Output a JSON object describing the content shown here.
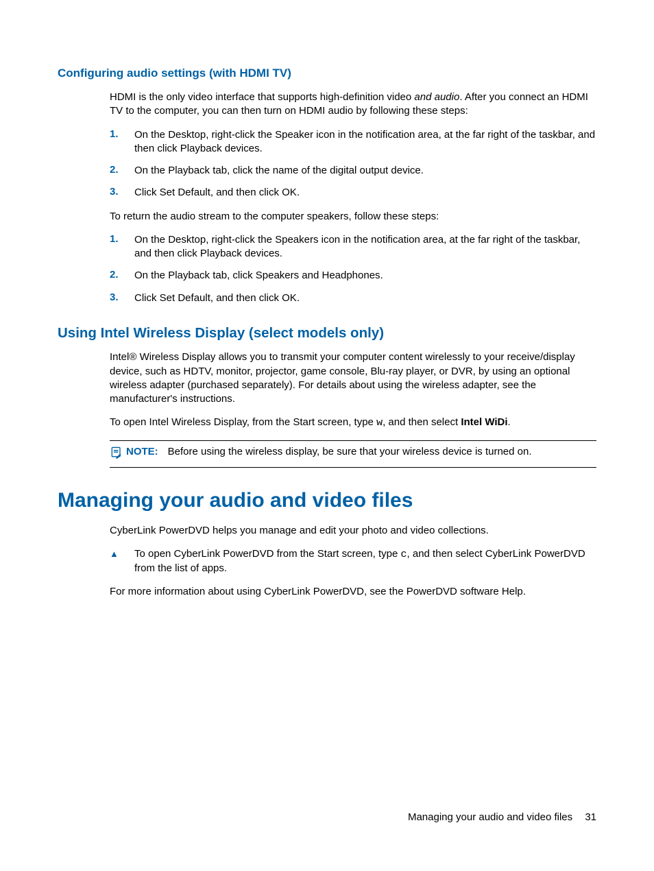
{
  "colors": {
    "accent": "#0061a5",
    "text": "#000000",
    "background": "#ffffff",
    "rule": "#000000"
  },
  "typography": {
    "body_family": "Arial, Helvetica, sans-serif",
    "body_size_pt": 11,
    "h1_size_pt": 22,
    "h2_size_pt": 15,
    "h3_size_pt": 13,
    "mono_family": "Courier New"
  },
  "section1": {
    "heading": "Configuring audio settings (with HDMI TV)",
    "intro_parts": [
      {
        "t": "HDMI is the only video interface that supports high-definition video "
      },
      {
        "t": "and audio",
        "i": true
      },
      {
        "t": ". After you connect an HDMI TV to the computer, you can then turn on HDMI audio by following these steps:"
      }
    ],
    "steps_a": [
      [
        {
          "t": "On the Desktop, right-click the "
        },
        {
          "t": "Speaker",
          "b": true
        },
        {
          "t": " icon in the notification area, at the far right of the taskbar, and then click "
        },
        {
          "t": "Playback devices",
          "b": true
        },
        {
          "t": "."
        }
      ],
      [
        {
          "t": "On the Playback tab, click the name of the digital output device."
        }
      ],
      [
        {
          "t": "Click "
        },
        {
          "t": "Set Default",
          "b": true
        },
        {
          "t": ", and then click "
        },
        {
          "t": "OK",
          "b": true
        },
        {
          "t": "."
        }
      ]
    ],
    "mid_para": "To return the audio stream to the computer speakers, follow these steps:",
    "steps_b": [
      [
        {
          "t": "On the Desktop, right-click the "
        },
        {
          "t": "Speakers",
          "b": true
        },
        {
          "t": " icon in the notification area, at the far right of the taskbar, and then click "
        },
        {
          "t": "Playback devices",
          "b": true
        },
        {
          "t": "."
        }
      ],
      [
        {
          "t": "On the Playback tab, click "
        },
        {
          "t": "Speakers and Headphones",
          "b": true
        },
        {
          "t": "."
        }
      ],
      [
        {
          "t": "Click "
        },
        {
          "t": "Set Default",
          "b": true
        },
        {
          "t": ", and then click "
        },
        {
          "t": "OK",
          "b": true
        },
        {
          "t": "."
        }
      ]
    ]
  },
  "section2": {
    "heading": "Using Intel Wireless Display (select models only)",
    "para1": "Intel® Wireless Display allows you to transmit your computer content wirelessly to your receive/display device, such as HDTV, monitor, projector, game console, Blu-ray player, or DVR, by using an optional wireless adapter (purchased separately). For details about using the wireless adapter, see the manufacturer's instructions.",
    "para2_parts": [
      {
        "t": "To open Intel Wireless Display, from the Start screen, type "
      },
      {
        "t": "w",
        "mono": true
      },
      {
        "t": ", and then select "
      },
      {
        "t": "Intel WiDi",
        "b": true
      },
      {
        "t": "."
      }
    ],
    "note_label": "NOTE:",
    "note_text": "Before using the wireless display, be sure that your wireless device is turned on."
  },
  "section3": {
    "heading": "Managing your audio and video files",
    "para1": "CyberLink PowerDVD helps you manage and edit your photo and video collections.",
    "bullet_parts": [
      {
        "t": "To open CyberLink PowerDVD from the Start screen, type "
      },
      {
        "t": "c",
        "mono": true
      },
      {
        "t": ", and then select "
      },
      {
        "t": "CyberLink PowerDVD",
        "b": true
      },
      {
        "t": " from the list of apps."
      }
    ],
    "para2": "For more information about using CyberLink PowerDVD, see the PowerDVD software Help."
  },
  "footer": {
    "title": "Managing your audio and video files",
    "page_number": "31"
  }
}
